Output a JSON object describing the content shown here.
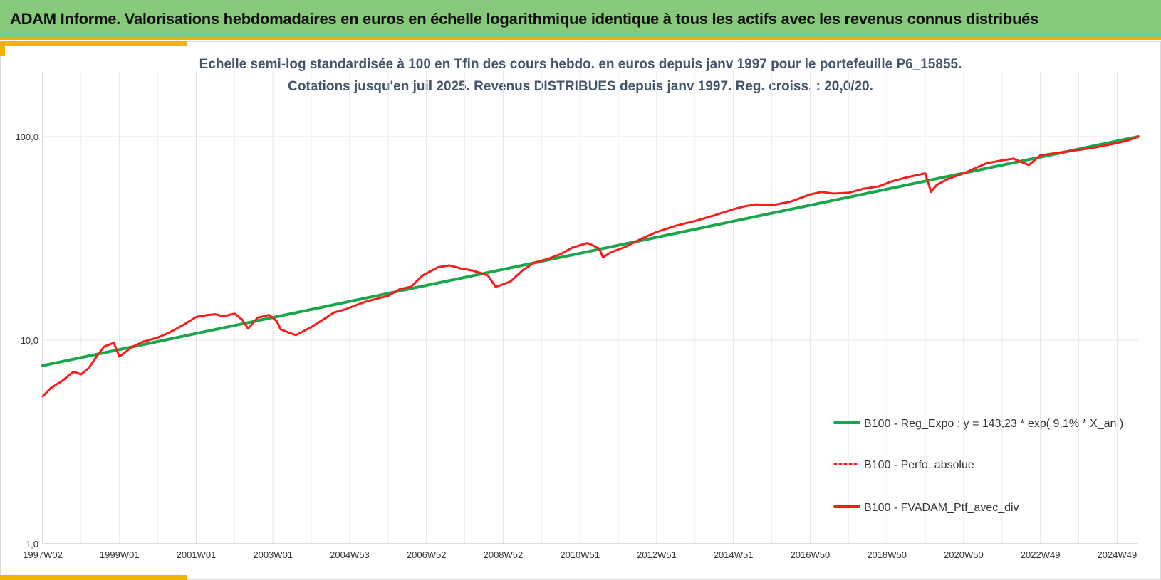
{
  "header": {
    "title": "ADAM Informe. Valorisations hebdomadaires en euros en échelle logarithmique identique à tous les actifs avec les revenus connus distribués"
  },
  "chart_data": {
    "type": "line",
    "title_line1": "Echelle semi-log standardisée à 100 en Tfin des cours hebdo. en euros depuis janv 1997 pour le portefeuille P6_15855.",
    "title_line2": "Cotations jusqu'en juil 2025. Revenus DISTRIBUES depuis janv 1997. Reg. croiss. : 20,0/20.",
    "y_scale": "log",
    "ylim": [
      1,
      200
    ],
    "y_ticks": [
      {
        "value": 1,
        "label": "1,0"
      },
      {
        "value": 10,
        "label": "10,0"
      },
      {
        "value": 100,
        "label": "100,0"
      }
    ],
    "xlim": [
      1997.0,
      2025.55
    ],
    "x_ticks": [
      {
        "value": 1997.0,
        "label": "1997W02"
      },
      {
        "value": 1999.0,
        "label": "1999W01"
      },
      {
        "value": 2001.0,
        "label": "2001W01"
      },
      {
        "value": 2003.0,
        "label": "2003W01"
      },
      {
        "value": 2005.0,
        "label": "2004W53"
      },
      {
        "value": 2007.0,
        "label": "2006W52"
      },
      {
        "value": 2009.0,
        "label": "2008W52"
      },
      {
        "value": 2011.0,
        "label": "2010W51"
      },
      {
        "value": 2013.0,
        "label": "2012W51"
      },
      {
        "value": 2015.0,
        "label": "2014W51"
      },
      {
        "value": 2017.0,
        "label": "2016W50"
      },
      {
        "value": 2019.0,
        "label": "2018W50"
      },
      {
        "value": 2021.0,
        "label": "2020W50"
      },
      {
        "value": 2023.0,
        "label": "2022W49"
      },
      {
        "value": 2025.0,
        "label": "2024W49"
      }
    ],
    "grid": true,
    "legend_position": "right",
    "series": [
      {
        "name": "B100 - Reg_Expo : y = 143,23 * exp( 9,1% *  X_an )",
        "color": "#1aa64a",
        "style": "solid",
        "x": [
          1997.0,
          2025.55
        ],
        "y": [
          7.5,
          100.0
        ]
      },
      {
        "name": "B100 - Perfo. absolue",
        "color": "#ff1a1a",
        "style": "dotted",
        "x": [],
        "y": []
      },
      {
        "name": "B100 - FVADAM_Ptf_avec_div",
        "color": "#ff1a1a",
        "style": "solid",
        "x": [
          1997.0,
          1997.2,
          1997.5,
          1997.8,
          1998.0,
          1998.2,
          1998.4,
          1998.6,
          1998.85,
          1999.0,
          1999.3,
          1999.6,
          2000.0,
          2000.3,
          2000.7,
          2001.0,
          2001.3,
          2001.5,
          2001.7,
          2002.0,
          2002.2,
          2002.35,
          2002.6,
          2002.9,
          2003.1,
          2003.2,
          2003.4,
          2003.6,
          2004.0,
          2004.3,
          2004.6,
          2004.9,
          2005.3,
          2005.6,
          2006.0,
          2006.3,
          2006.6,
          2006.9,
          2007.3,
          2007.6,
          2007.9,
          2008.2,
          2008.6,
          2008.8,
          2009.0,
          2009.2,
          2009.5,
          2009.8,
          2010.2,
          2010.5,
          2010.8,
          2011.2,
          2011.5,
          2011.6,
          2011.8,
          2012.2,
          2012.6,
          2013.0,
          2013.5,
          2014.0,
          2014.5,
          2015.0,
          2015.3,
          2015.6,
          2016.0,
          2016.5,
          2017.0,
          2017.3,
          2017.6,
          2018.0,
          2018.4,
          2018.8,
          2019.1,
          2019.5,
          2020.0,
          2020.15,
          2020.3,
          2020.6,
          2021.0,
          2021.3,
          2021.6,
          2022.0,
          2022.3,
          2022.5,
          2022.7,
          2023.0,
          2023.5,
          2024.0,
          2024.5,
          2025.0,
          2025.3,
          2025.55
        ],
        "y": [
          5.3,
          5.8,
          6.3,
          7.0,
          6.8,
          7.3,
          8.3,
          9.3,
          9.7,
          8.3,
          9.2,
          9.8,
          10.3,
          10.9,
          12.0,
          13.0,
          13.3,
          13.4,
          13.1,
          13.5,
          12.6,
          11.4,
          12.9,
          13.3,
          12.4,
          11.3,
          10.9,
          10.6,
          11.6,
          12.6,
          13.7,
          14.2,
          15.2,
          15.8,
          16.5,
          17.8,
          18.3,
          20.8,
          22.8,
          23.3,
          22.5,
          22.0,
          20.8,
          18.3,
          18.8,
          19.5,
          22.0,
          24.0,
          25.2,
          26.5,
          28.5,
          30.0,
          28.2,
          25.5,
          27.0,
          28.8,
          31.5,
          34.0,
          36.5,
          38.5,
          41.0,
          44.0,
          45.5,
          46.5,
          46.0,
          48.0,
          52.0,
          53.5,
          52.5,
          53.0,
          55.5,
          57.0,
          60.0,
          63.0,
          66.0,
          53.5,
          58.0,
          62.0,
          66.0,
          70.0,
          74.0,
          76.5,
          78.0,
          75.0,
          72.5,
          81.0,
          83.5,
          86.0,
          89.0,
          93.0,
          96.0,
          100.0
        ]
      }
    ]
  }
}
